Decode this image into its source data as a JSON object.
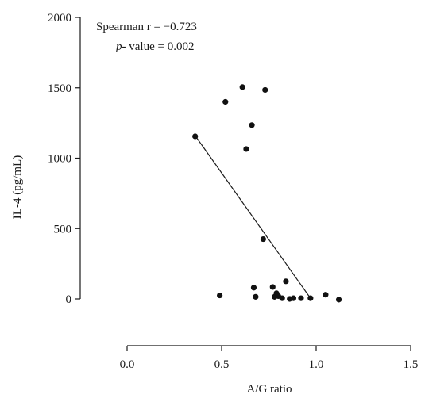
{
  "chart_data": {
    "type": "scatter",
    "xlabel": "A/G ratio",
    "ylabel": "IL-4 (pg/mL)",
    "xlim": [
      0.0,
      1.5
    ],
    "ylim": [
      0,
      2000
    ],
    "xticks": [
      0.0,
      0.5,
      1.0,
      1.5
    ],
    "xtick_labels": [
      "0.0",
      "0.5",
      "1.0",
      "1.5"
    ],
    "yticks": [
      0,
      500,
      1000,
      1500,
      2000
    ],
    "ytick_labels": [
      "0",
      "500",
      "1000",
      "1500",
      "2000"
    ],
    "grid": false,
    "annotation": {
      "line1": "Spearman r = −0.723",
      "line2_italic": "p",
      "line2_rest": "- value = 0.002"
    },
    "points": [
      {
        "x": 0.36,
        "y": 1155
      },
      {
        "x": 0.49,
        "y": 25
      },
      {
        "x": 0.52,
        "y": 1400
      },
      {
        "x": 0.61,
        "y": 1505
      },
      {
        "x": 0.63,
        "y": 1065
      },
      {
        "x": 0.66,
        "y": 1235
      },
      {
        "x": 0.67,
        "y": 80
      },
      {
        "x": 0.68,
        "y": 15
      },
      {
        "x": 0.73,
        "y": 1485
      },
      {
        "x": 0.72,
        "y": 425
      },
      {
        "x": 0.77,
        "y": 85
      },
      {
        "x": 0.78,
        "y": 15
      },
      {
        "x": 0.79,
        "y": 40
      },
      {
        "x": 0.8,
        "y": 20
      },
      {
        "x": 0.82,
        "y": 5
      },
      {
        "x": 0.84,
        "y": 125
      },
      {
        "x": 0.86,
        "y": 0
      },
      {
        "x": 0.88,
        "y": 5
      },
      {
        "x": 0.92,
        "y": 5
      },
      {
        "x": 0.97,
        "y": 5
      },
      {
        "x": 1.05,
        "y": 30
      },
      {
        "x": 1.12,
        "y": -5
      }
    ],
    "trend_line": {
      "x": [
        0.36,
        0.97
      ],
      "y": [
        1160,
        5
      ]
    }
  }
}
